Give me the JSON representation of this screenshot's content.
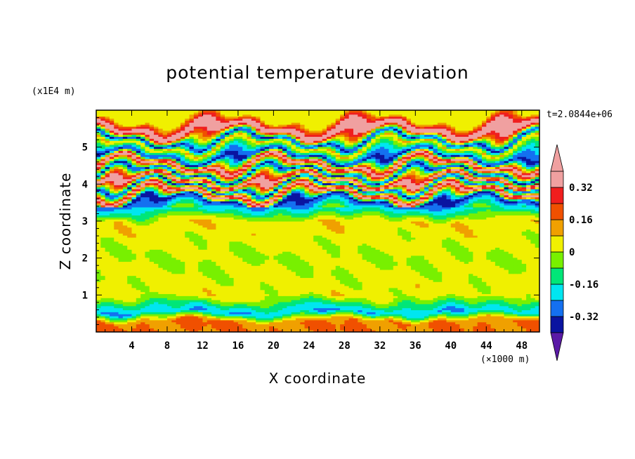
{
  "chart_data": {
    "type": "heatmap",
    "title": "potential temperature deviation",
    "xlabel": "X coordinate",
    "ylabel": "Z coordinate",
    "x_unit": "(×1000 m)",
    "y_unit": "(x1E4 m)",
    "time_label": "t=2.0844e+06",
    "xlim": [
      0,
      50
    ],
    "ylim": [
      0,
      6
    ],
    "x_ticks": [
      4,
      8,
      12,
      16,
      20,
      24,
      28,
      32,
      36,
      40,
      44,
      48
    ],
    "x_tick_labels": [
      "4",
      "8",
      "12",
      "16",
      "20",
      "24",
      "28",
      "32",
      "36",
      "40",
      "44",
      "48"
    ],
    "y_ticks": [
      1,
      2,
      3,
      4,
      5
    ],
    "y_tick_labels": [
      "1",
      "2",
      "3",
      "4",
      "5"
    ],
    "colorbar": {
      "levels": [
        -0.4,
        -0.32,
        -0.24,
        -0.16,
        -0.08,
        0,
        0.08,
        0.16,
        0.24,
        0.32,
        0.4
      ],
      "tick_values": [
        0.32,
        0.16,
        0,
        -0.16,
        -0.32
      ],
      "tick_labels": [
        "0.32",
        "0.16",
        "0",
        "-0.16",
        "-0.32"
      ],
      "colors": [
        "#5a1aa6",
        "#0a14a0",
        "#1470f0",
        "#00e6f0",
        "#00e678",
        "#78f000",
        "#f0f000",
        "#f0a000",
        "#f05000",
        "#f01e1e",
        "#f0a0a0"
      ]
    },
    "bands": [
      {
        "z": 0.3,
        "value": 0.16
      },
      {
        "z": 0.55,
        "value": -0.24
      },
      {
        "z": 1.0,
        "value": 0.04
      },
      {
        "z": 2.0,
        "value": 0.0
      },
      {
        "z": 3.0,
        "value": 0.06
      },
      {
        "z": 3.55,
        "value": -0.36
      },
      {
        "z": 3.75,
        "value": 0.45
      },
      {
        "z": 3.95,
        "value": -0.36
      },
      {
        "z": 4.1,
        "value": 0.45
      },
      {
        "z": 4.3,
        "value": -0.36
      },
      {
        "z": 4.55,
        "value": 0.45
      },
      {
        "z": 4.75,
        "value": -0.36
      },
      {
        "z": 5.05,
        "value": 0.1
      },
      {
        "z": 5.2,
        "value": -0.36
      },
      {
        "z": 5.45,
        "value": 0.45
      },
      {
        "z": 5.6,
        "value": 0.3
      },
      {
        "z": 5.8,
        "value": 0.02
      }
    ]
  }
}
